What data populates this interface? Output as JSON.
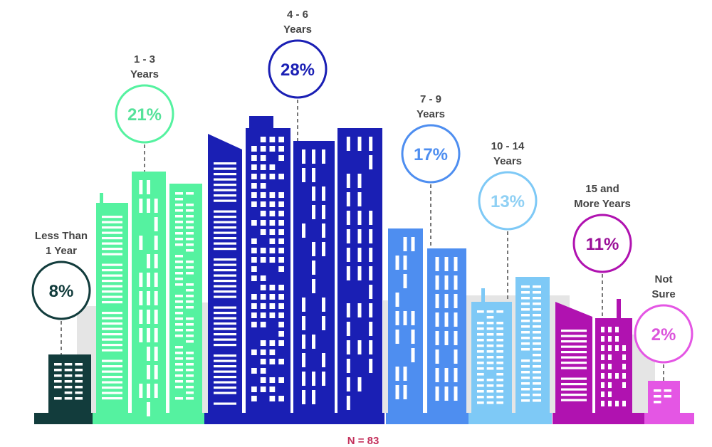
{
  "chart_data": {
    "type": "bar",
    "title": "",
    "categories": [
      [
        "Less Than",
        "1 Year"
      ],
      [
        "1 - 3",
        "Years"
      ],
      [
        "4 - 6",
        "Years"
      ],
      [
        "7 - 9",
        "Years"
      ],
      [
        "10 - 14",
        "Years"
      ],
      [
        "15 and",
        "More Years"
      ],
      [
        "Not",
        "Sure"
      ]
    ],
    "values": [
      8,
      21,
      28,
      17,
      13,
      11,
      2
    ],
    "value_labels": [
      "8%",
      "21%",
      "28%",
      "17%",
      "13%",
      "11%",
      "2%"
    ],
    "unit": "%",
    "colors": [
      "#123c3c",
      "#55f2a0",
      "#1a1fb4",
      "#4e8ef0",
      "#7ec9f6",
      "#b012b0",
      "#e456e4"
    ],
    "circle_text_colors": [
      "#123c3c",
      "#55e29a",
      "#1a1fb4",
      "#4e8ef0",
      "#8fd0f4",
      "#9a1098",
      "#dc55dc"
    ],
    "background_building_color": "#e5e5e5",
    "label_color": "#444444",
    "note": "N = 83",
    "note_color": "#c4315c"
  }
}
